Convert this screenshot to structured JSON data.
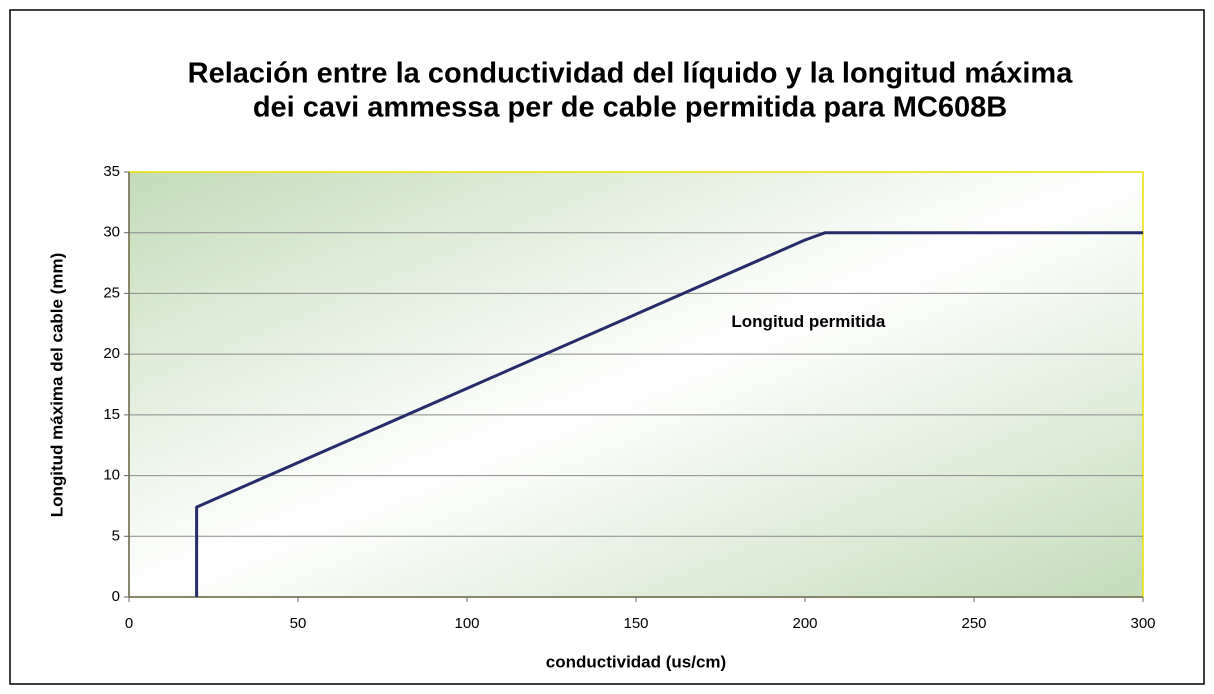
{
  "chart_data": {
    "type": "line",
    "title": [
      "Relación entre la conductividad del líquido y la longitud máxima",
      "dei cavi ammessa per de cable permitida para MC608B"
    ],
    "x_label": "conductividad (us/cm)",
    "y_label": "Longitud máxima del cable (mm)",
    "annotation": {
      "text": "Longitud permitida",
      "x": 201,
      "y": 22.6
    },
    "x": [
      20,
      20,
      200,
      206,
      300
    ],
    "series": [
      {
        "color": "#262c6b",
        "values": [
          0,
          7.4,
          29.4,
          30,
          30
        ]
      }
    ],
    "xlim": [
      0,
      300
    ],
    "xticks": [
      0,
      50,
      100,
      150,
      200,
      250,
      300
    ],
    "ylim": [
      0,
      35
    ],
    "yticks": [
      0,
      5,
      10,
      15,
      20,
      25,
      30,
      35
    ],
    "grid": true
  }
}
